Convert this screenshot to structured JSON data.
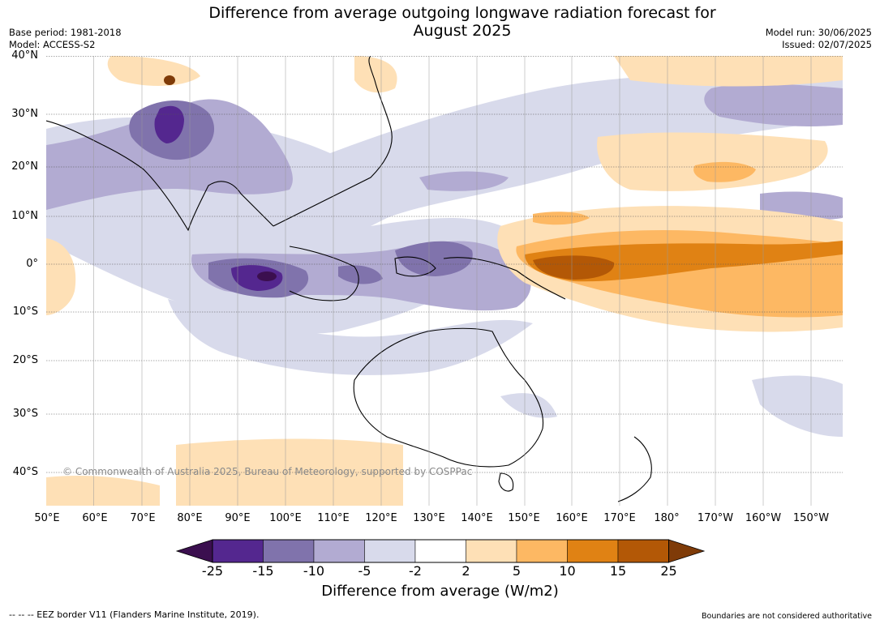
{
  "title_line1": "Difference from average outgoing longwave radiation forecast for",
  "title_line2": "August 2025",
  "base_period": "Base period: 1981-2018",
  "model": "Model: ACCESS-S2",
  "model_run": "Model run: 30/06/2025",
  "issued": "Issued: 02/07/2025",
  "lat_labels": [
    "40°N",
    "30°N",
    "20°N",
    "10°N",
    "0°",
    "10°S",
    "20°S",
    "30°S",
    "40°S"
  ],
  "lon_labels": [
    "50°E",
    "60°E",
    "70°E",
    "80°E",
    "90°E",
    "100°E",
    "110°E",
    "120°E",
    "130°E",
    "140°E",
    "150°E",
    "160°E",
    "170°E",
    "180°",
    "170°W",
    "160°W",
    "150°W"
  ],
  "copyright": "© Commonwealth of Australia 2025, Bureau of Meteorology, supported by COSPPac",
  "colorbar": {
    "ticks": [
      "-25",
      "-15",
      "-10",
      "-5",
      "-2",
      "2",
      "5",
      "10",
      "15",
      "25"
    ],
    "label": "Difference from average (W/m2)",
    "colors": [
      "#3b0f4f",
      "#54278f",
      "#8073ac",
      "#b2abd2",
      "#d8daeb",
      "#ffffff",
      "#fee0b6",
      "#fdb863",
      "#e08214",
      "#b35806",
      "#7f3b08"
    ]
  },
  "footnote_left": "--  --  -- EEZ border V11 (Flanders Marine Institute, 2019).",
  "footnote_right": "Boundaries are not considered authoritative"
}
